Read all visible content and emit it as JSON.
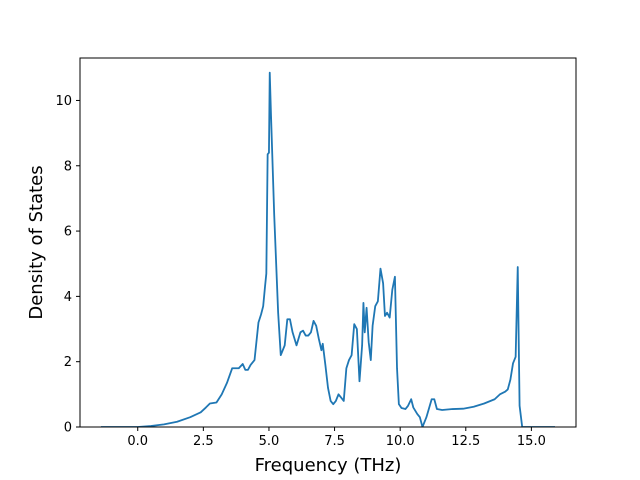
{
  "chart_data": {
    "type": "line",
    "title": "",
    "xlabel": "Frequency (THz)",
    "ylabel": "Density of States",
    "xlim": [
      -2.2,
      16.7
    ],
    "ylim": [
      0,
      11.3
    ],
    "x_ticks": [
      0.0,
      2.5,
      5.0,
      7.5,
      10.0,
      12.5,
      15.0
    ],
    "x_tick_labels": [
      "0.0",
      "2.5",
      "5.0",
      "7.5",
      "10.0",
      "12.5",
      "15.0"
    ],
    "y_ticks": [
      0,
      2,
      4,
      6,
      8,
      10
    ],
    "y_tick_labels": [
      "0",
      "2",
      "4",
      "6",
      "8",
      "10"
    ],
    "grid": false,
    "line_color": "#1f77b4",
    "series": [
      {
        "points": [
          [
            -1.4,
            0
          ],
          [
            -0.5,
            0
          ],
          [
            0.0,
            0.0
          ],
          [
            0.5,
            0.03
          ],
          [
            1.0,
            0.08
          ],
          [
            1.5,
            0.16
          ],
          [
            2.0,
            0.3
          ],
          [
            2.4,
            0.45
          ],
          [
            2.6,
            0.6
          ],
          [
            2.75,
            0.72
          ],
          [
            3.0,
            0.75
          ],
          [
            3.2,
            1.0
          ],
          [
            3.4,
            1.35
          ],
          [
            3.6,
            1.8
          ],
          [
            3.75,
            1.8
          ],
          [
            3.85,
            1.8
          ],
          [
            4.0,
            1.93
          ],
          [
            4.1,
            1.75
          ],
          [
            4.2,
            1.75
          ],
          [
            4.3,
            1.9
          ],
          [
            4.45,
            2.05
          ],
          [
            4.6,
            3.2
          ],
          [
            4.7,
            3.45
          ],
          [
            4.78,
            3.7
          ],
          [
            4.85,
            4.3
          ],
          [
            4.9,
            4.7
          ],
          [
            4.95,
            8.35
          ],
          [
            5.0,
            8.4
          ],
          [
            5.03,
            10.85
          ],
          [
            5.08,
            9.5
          ],
          [
            5.2,
            6.5
          ],
          [
            5.35,
            3.5
          ],
          [
            5.45,
            2.2
          ],
          [
            5.6,
            2.5
          ],
          [
            5.7,
            3.3
          ],
          [
            5.8,
            3.3
          ],
          [
            5.9,
            2.9
          ],
          [
            6.05,
            2.5
          ],
          [
            6.2,
            2.9
          ],
          [
            6.3,
            2.95
          ],
          [
            6.4,
            2.8
          ],
          [
            6.5,
            2.8
          ],
          [
            6.6,
            2.9
          ],
          [
            6.7,
            3.25
          ],
          [
            6.8,
            3.1
          ],
          [
            6.9,
            2.7
          ],
          [
            7.0,
            2.35
          ],
          [
            7.05,
            2.55
          ],
          [
            7.15,
            1.9
          ],
          [
            7.25,
            1.2
          ],
          [
            7.35,
            0.8
          ],
          [
            7.45,
            0.7
          ],
          [
            7.55,
            0.8
          ],
          [
            7.65,
            1.0
          ],
          [
            7.75,
            0.9
          ],
          [
            7.85,
            0.8
          ],
          [
            7.95,
            1.8
          ],
          [
            8.05,
            2.05
          ],
          [
            8.15,
            2.2
          ],
          [
            8.25,
            3.15
          ],
          [
            8.35,
            3.0
          ],
          [
            8.45,
            1.4
          ],
          [
            8.55,
            2.5
          ],
          [
            8.6,
            3.8
          ],
          [
            8.65,
            2.9
          ],
          [
            8.72,
            3.65
          ],
          [
            8.8,
            2.6
          ],
          [
            8.88,
            2.05
          ],
          [
            8.95,
            3.1
          ],
          [
            9.05,
            3.7
          ],
          [
            9.15,
            3.85
          ],
          [
            9.25,
            4.85
          ],
          [
            9.35,
            4.4
          ],
          [
            9.42,
            3.4
          ],
          [
            9.5,
            3.5
          ],
          [
            9.6,
            3.35
          ],
          [
            9.7,
            4.2
          ],
          [
            9.8,
            4.6
          ],
          [
            9.88,
            1.8
          ],
          [
            9.95,
            0.7
          ],
          [
            10.05,
            0.58
          ],
          [
            10.2,
            0.55
          ],
          [
            10.3,
            0.65
          ],
          [
            10.42,
            0.85
          ],
          [
            10.5,
            0.6
          ],
          [
            10.65,
            0.4
          ],
          [
            10.75,
            0.3
          ],
          [
            10.85,
            0.0
          ],
          [
            11.0,
            0.3
          ],
          [
            11.2,
            0.85
          ],
          [
            11.3,
            0.85
          ],
          [
            11.4,
            0.55
          ],
          [
            11.6,
            0.52
          ],
          [
            12.0,
            0.55
          ],
          [
            12.4,
            0.56
          ],
          [
            12.8,
            0.62
          ],
          [
            13.2,
            0.72
          ],
          [
            13.6,
            0.85
          ],
          [
            13.8,
            1.0
          ],
          [
            14.0,
            1.08
          ],
          [
            14.1,
            1.15
          ],
          [
            14.2,
            1.45
          ],
          [
            14.3,
            1.95
          ],
          [
            14.4,
            2.15
          ],
          [
            14.48,
            4.9
          ],
          [
            14.55,
            0.65
          ],
          [
            14.65,
            0.0
          ],
          [
            15.0,
            0.0
          ],
          [
            15.9,
            0.0
          ]
        ]
      }
    ]
  }
}
